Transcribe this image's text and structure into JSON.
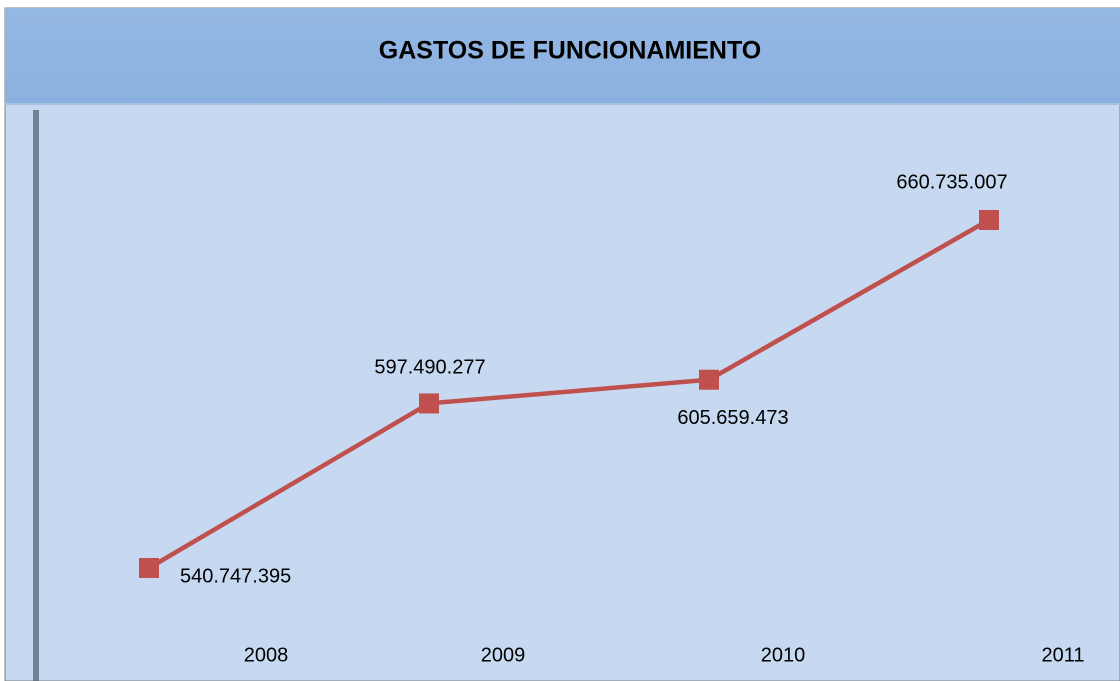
{
  "chart_data": {
    "type": "line",
    "title": "GASTOS DE FUNCIONAMIENTO",
    "categories": [
      "2008",
      "2009",
      "2010",
      "2011"
    ],
    "series": [
      {
        "color": "#c0504d",
        "values": [
          540747395,
          597490277,
          605659473,
          660735007
        ],
        "value_labels": [
          "540.747.395",
          "597.490.277",
          "605.659.473",
          "660.735.007"
        ]
      }
    ]
  }
}
